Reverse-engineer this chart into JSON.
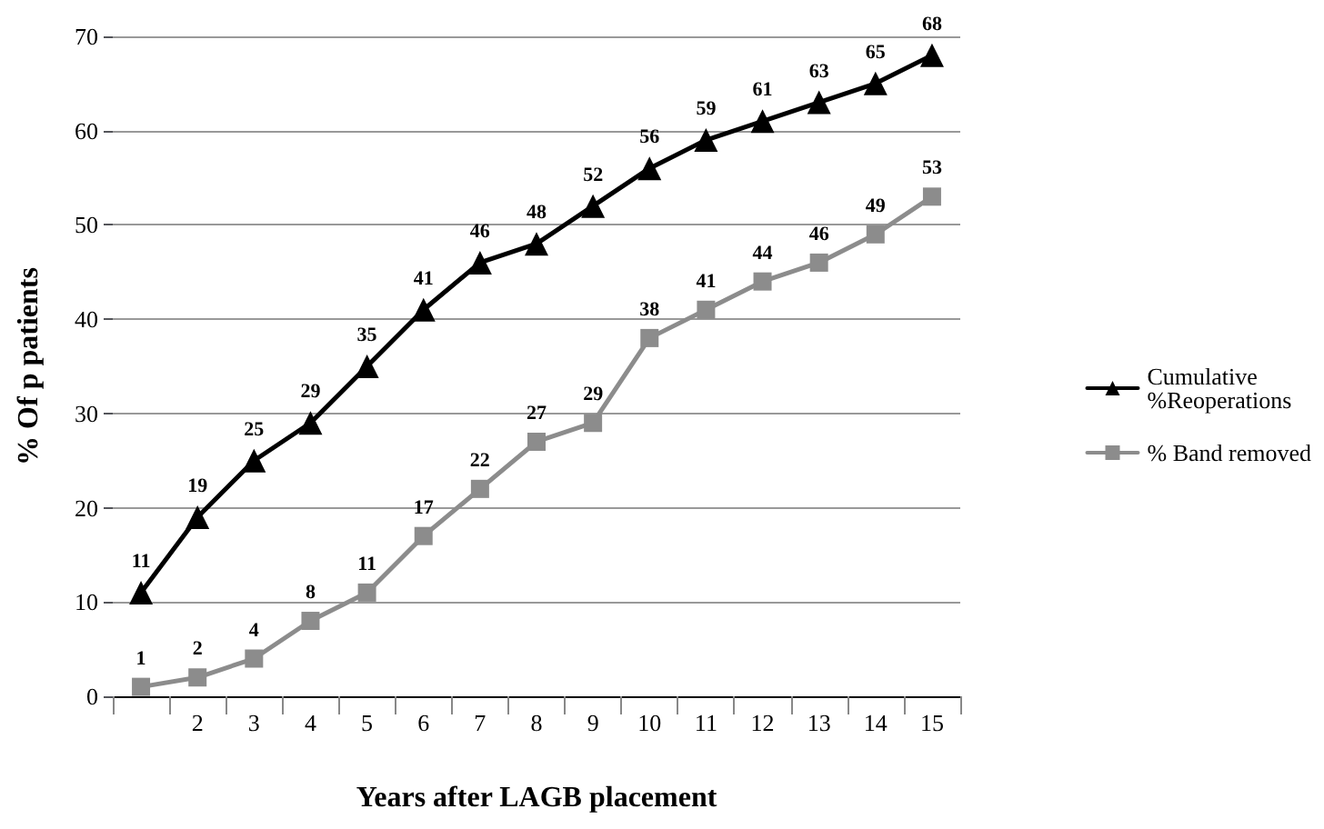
{
  "chart_data": {
    "type": "line",
    "xlabel": "Years after LAGB placement",
    "ylabel": "% Of p patients",
    "categories": [
      null,
      "2",
      "3",
      "4",
      "5",
      "6",
      "7",
      "8",
      "9",
      "10",
      "11",
      "12",
      "13",
      "14",
      "15"
    ],
    "series": [
      {
        "name": "Cumulative %Reoperations",
        "color": "#000000",
        "marker": "triangle",
        "values": [
          11,
          19,
          25,
          29,
          35,
          41,
          46,
          48,
          52,
          56,
          59,
          61,
          63,
          65,
          68
        ]
      },
      {
        "name": "% Band removed",
        "color": "#8c8c8c",
        "marker": "square",
        "values": [
          1,
          2,
          4,
          8,
          11,
          17,
          22,
          27,
          29,
          38,
          41,
          44,
          46,
          49,
          53
        ]
      }
    ],
    "ylim": [
      0,
      70
    ],
    "yticks": [
      0,
      10,
      20,
      30,
      40,
      50,
      60,
      70
    ],
    "grid": "y",
    "legend": "right",
    "data_labels": true,
    "line_style": "solid"
  }
}
